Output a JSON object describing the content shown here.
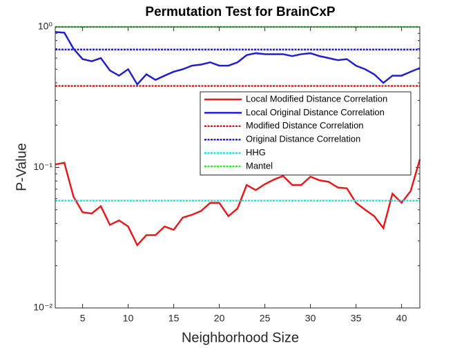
{
  "chart_data": {
    "type": "line",
    "title": "Permutation Test for BrainCxP",
    "xlabel": "Neighborhood Size",
    "ylabel": "P-Value",
    "xlim": [
      2,
      42
    ],
    "xticks": [
      5,
      10,
      15,
      20,
      25,
      30,
      35,
      40
    ],
    "ylim": [
      0.01,
      1
    ],
    "yticks": [
      {
        "value": 0.01,
        "label": "10⁻²"
      },
      {
        "value": 0.1,
        "label": "10⁻¹"
      },
      {
        "value": 1,
        "label": "10⁰"
      }
    ],
    "log_y": true,
    "legend": "upper right",
    "x": [
      2,
      3,
      4,
      5,
      6,
      7,
      8,
      9,
      10,
      11,
      12,
      13,
      14,
      15,
      16,
      17,
      18,
      19,
      20,
      21,
      22,
      23,
      24,
      25,
      26,
      27,
      28,
      29,
      30,
      31,
      32,
      33,
      34,
      35,
      36,
      37,
      38,
      39,
      40,
      41,
      42
    ],
    "series": [
      {
        "name": "Local Modified Distance Correlation",
        "color": "#e41a1c",
        "style": "solid",
        "values": [
          0.105,
          0.108,
          0.062,
          0.048,
          0.047,
          0.053,
          0.039,
          0.042,
          0.038,
          0.028,
          0.033,
          0.033,
          0.038,
          0.036,
          0.044,
          0.046,
          0.049,
          0.056,
          0.056,
          0.045,
          0.051,
          0.075,
          0.069,
          0.076,
          0.082,
          0.087,
          0.075,
          0.075,
          0.086,
          0.081,
          0.079,
          0.072,
          0.071,
          0.056,
          0.05,
          0.045,
          0.037,
          0.065,
          0.056,
          0.068,
          0.114
        ]
      },
      {
        "name": "Local Original Distance Correlation",
        "color": "#1f1fd0",
        "style": "solid",
        "values": [
          0.92,
          0.91,
          0.7,
          0.59,
          0.57,
          0.6,
          0.49,
          0.45,
          0.5,
          0.39,
          0.46,
          0.42,
          0.45,
          0.48,
          0.5,
          0.53,
          0.54,
          0.56,
          0.53,
          0.53,
          0.56,
          0.63,
          0.65,
          0.64,
          0.64,
          0.64,
          0.62,
          0.64,
          0.65,
          0.62,
          0.6,
          0.58,
          0.59,
          0.53,
          0.5,
          0.46,
          0.4,
          0.45,
          0.45,
          0.48,
          0.51
        ]
      },
      {
        "name": "Modified Distance Correlation",
        "color": "#e41a1c",
        "style": "dashed",
        "hline": 0.38
      },
      {
        "name": "Original Distance Correlation",
        "color": "#1f1fd0",
        "style": "dashed",
        "hline": 0.69
      },
      {
        "name": "HHG",
        "color": "#22e0e8",
        "style": "dashed",
        "hline": 0.058
      },
      {
        "name": "Mantel",
        "color": "#2ee62e",
        "style": "dashed",
        "hline": 1.0
      }
    ]
  }
}
